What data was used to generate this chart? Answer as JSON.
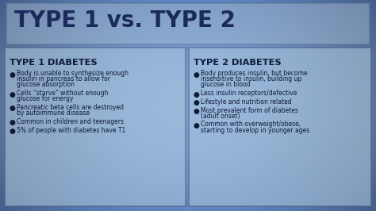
{
  "title": "TYPE 1 vs. TYPE 2",
  "bg_top_color": "#3a6090",
  "bg_mid_color": "#7aaac8",
  "bg_bottom_color": "#3560a0",
  "title_box_edge": "#5577aa",
  "panel_face": "#c8d8e8",
  "panel_edge": "#556688",
  "title_text_color": "#1a2a5a",
  "heading_text_color": "#0d1a3a",
  "body_text_color": "#0d1a3a",
  "bullet_color": "#0d1a3a",
  "left_heading": "TYPE 1 DIABETES",
  "right_heading": "TYPE 2 DIABETES",
  "left_bullets": [
    "Body is unable to synthesize enough\ninsulin in pancreas to allow for\nglucose absorption",
    "Cells “starve” without enough\nglucose for energy",
    "Pancreatic beta cells are destroyed\nby autoimmune disease",
    "Common in children and teenagers",
    "5% of people with diabetes have T1"
  ],
  "right_bullets": [
    "Body produces insulin, but become\ninsensitive to insulin, building up\nglucose in blood",
    "Less insulin receptors/defective",
    "Lifestyle and nutrition related",
    "Most prevalent form of diabetes\n(adult onset)",
    "Common with overweight/obese,\nstarting to develop in younger ages"
  ]
}
